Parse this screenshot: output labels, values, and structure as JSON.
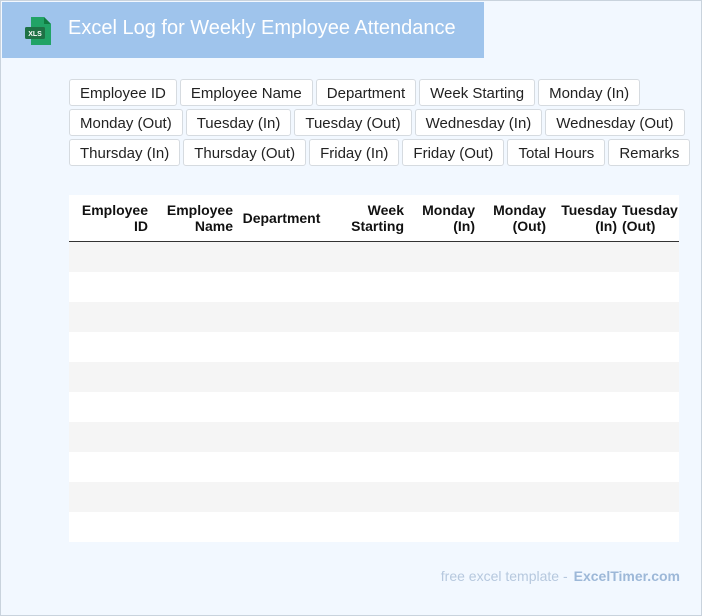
{
  "header": {
    "title": "Excel Log for Weekly Employee Attendance",
    "icon": "xls-file-icon",
    "icon_label": "XLS",
    "colors": {
      "title_bg": "#9fc4ec",
      "icon_green": "#1e7145"
    }
  },
  "fields": {
    "rows": [
      [
        "Employee ID",
        "Employee Name",
        "Department",
        "Week Starting",
        "Monday (In)"
      ],
      [
        "Monday (Out)",
        "Tuesday (In)",
        "Tuesday (Out)",
        "Wednesday (In)",
        "Wednesday (Out)"
      ],
      [
        "Thursday (In)",
        "Thursday (Out)",
        "Friday (In)",
        "Friday (Out)",
        "Total Hours",
        "Remarks"
      ]
    ]
  },
  "table": {
    "columns": [
      [
        "Employee",
        "ID"
      ],
      [
        "Employee",
        "Name"
      ],
      [
        "Department",
        ""
      ],
      [
        "Week",
        "Starting"
      ],
      [
        "Monday",
        "(In)"
      ],
      [
        "Monday",
        "(Out)"
      ],
      [
        "Tuesday",
        "(In)"
      ],
      [
        "Tuesday",
        "(Out)"
      ]
    ],
    "empty_rows": 10
  },
  "footer": {
    "text": "free excel template -",
    "site": "ExcelTimer.com"
  }
}
